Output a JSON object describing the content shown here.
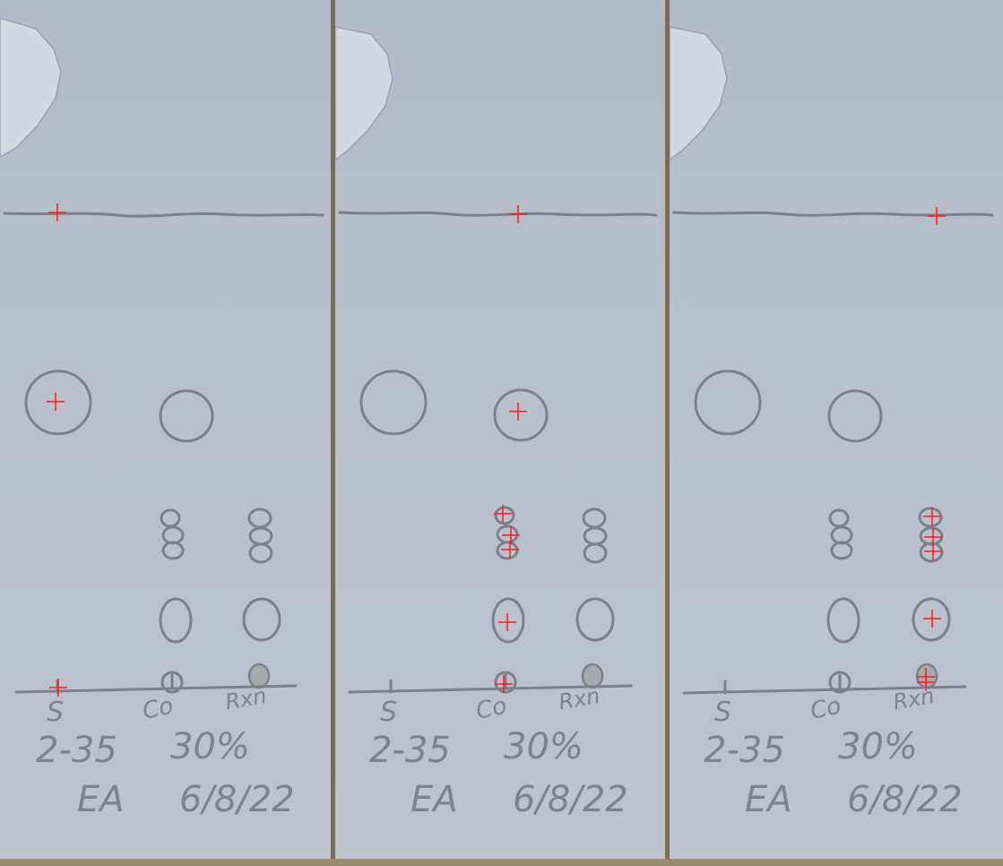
{
  "image": {
    "subject": "tlc-plates-photo",
    "panel_count": 3,
    "plates": [
      {
        "lane_labels": [
          "S",
          "Co",
          "Rxn"
        ],
        "annotation_line1": [
          "2-35",
          "30%"
        ],
        "annotation_line2": [
          "EA",
          "6/8/22"
        ],
        "marker_count": 3
      },
      {
        "lane_labels": [
          "S",
          "Co",
          "Rxn"
        ],
        "annotation_line1": [
          "2-35",
          "30%"
        ],
        "annotation_line2": [
          "EA",
          "6/8/22"
        ],
        "marker_count": 7
      },
      {
        "lane_labels": [
          "S",
          "Co",
          "Rxn"
        ],
        "annotation_line1": [
          "2-35",
          "30%"
        ],
        "annotation_line2": [
          "EA",
          "6/8/22"
        ],
        "marker_count": 7
      }
    ],
    "colors": {
      "plate": "#b8c0cc",
      "pencil": "#7c8088",
      "marker": "#ff1a1a",
      "backing": "#7b6d57"
    }
  }
}
